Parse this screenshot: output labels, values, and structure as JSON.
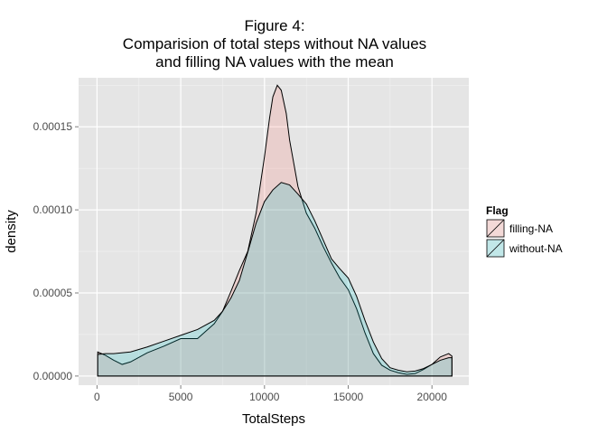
{
  "chart_data": {
    "type": "area",
    "subtype": "density",
    "title": [
      "Figure 4:",
      "Comparision of total steps without NA values",
      "and filling NA values with the mean"
    ],
    "xlabel": "TotalSteps",
    "ylabel": "density",
    "xlim": [
      -1100,
      22200
    ],
    "ylim": [
      -5.5e-06,
      0.0001795
    ],
    "x_ticks": [
      0,
      5000,
      10000,
      15000,
      20000
    ],
    "x_tick_labels": [
      "0",
      "5000",
      "10000",
      "15000",
      "20000"
    ],
    "y_ticks": [
      0,
      5e-05,
      0.0001,
      0.00015
    ],
    "y_tick_labels": [
      "0.00000",
      "0.00005",
      "0.00010",
      "0.00015"
    ],
    "grid": true,
    "legend": {
      "title": "Flag",
      "position": "right"
    },
    "series": [
      {
        "name": "filling-NA",
        "color": "#F8766D",
        "x": [
          41,
          500,
          1000,
          1500,
          2000,
          3000,
          4000,
          5000,
          6000,
          7000,
          7500,
          8000,
          8500,
          9000,
          9500,
          10000,
          10300,
          10500,
          10766,
          11000,
          11300,
          11500,
          12000,
          12500,
          13000,
          13500,
          14000,
          14500,
          15000,
          15500,
          16000,
          16500,
          17000,
          17500,
          18000,
          18500,
          19000,
          19500,
          20000,
          20500,
          21000,
          21194
        ],
        "y": [
          1.45e-05,
          1.25e-05,
          9.5e-06,
          7e-06,
          8.5e-06,
          1.4e-05,
          1.8e-05,
          2.25e-05,
          2.25e-05,
          3.15e-05,
          3.9e-05,
          5.1e-05,
          6.35e-05,
          7.5e-05,
          9.8e-05,
          0.000132,
          0.000155,
          0.000168,
          0.000175,
          0.000172,
          0.000158,
          0.000142,
          0.000114,
          9.8e-05,
          8.9e-05,
          7.8e-05,
          6.8e-05,
          5.9e-05,
          5.2e-05,
          4.05e-05,
          2.6e-05,
          1.35e-05,
          6.5e-06,
          3.5e-06,
          2e-06,
          1e-06,
          1.5e-06,
          4e-06,
          7e-06,
          1.15e-05,
          1.35e-05,
          1.2e-05
        ]
      },
      {
        "name": "without-NA",
        "color": "#00BFC4",
        "x": [
          41,
          500,
          1000,
          2000,
          3000,
          4000,
          5000,
          6000,
          7000,
          7500,
          8000,
          8500,
          9000,
          9500,
          10000,
          10500,
          11000,
          11500,
          12000,
          12500,
          13000,
          13500,
          14000,
          14500,
          15000,
          15500,
          16000,
          16500,
          17000,
          17500,
          18000,
          18500,
          19000,
          19500,
          20000,
          20500,
          21000,
          21194
        ],
        "y": [
          1.3e-05,
          1.35e-05,
          1.35e-05,
          1.45e-05,
          1.75e-05,
          2.1e-05,
          2.45e-05,
          2.8e-05,
          3.35e-05,
          3.9e-05,
          4.7e-05,
          5.75e-05,
          7.45e-05,
          9.2e-05,
          0.000105,
          0.000112,
          0.0001165,
          0.000115,
          0.0001095,
          0.0001035,
          9.35e-05,
          8.2e-05,
          7.05e-05,
          6.45e-05,
          5.9e-05,
          4.8e-05,
          3.35e-05,
          2.05e-05,
          1.05e-05,
          5e-06,
          3.5e-06,
          2.5e-06,
          3e-06,
          4.5e-06,
          7e-06,
          9.5e-06,
          1.1e-05,
          1.1e-05
        ]
      }
    ]
  }
}
